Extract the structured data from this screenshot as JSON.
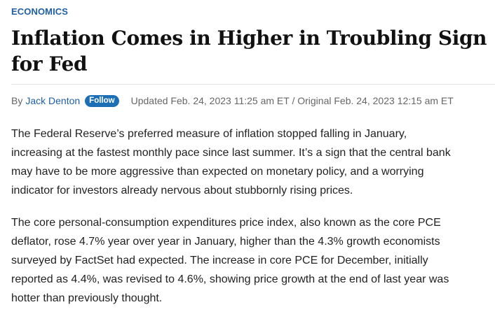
{
  "section": {
    "label": "ECONOMICS"
  },
  "headline": "Inflation Comes in Higher in Troubling Sign for Fed",
  "byline": {
    "prefix": "By",
    "author": "Jack Denton",
    "follow_label": "Follow",
    "timestamp": "Updated Feb. 24, 2023 11:25 am ET / Original Feb. 24, 2023 12:15 am ET"
  },
  "body": {
    "paragraphs": [
      "The Federal Reserve’s preferred measure of inflation stopped falling in January, increasing at the fastest monthly pace since last summer. It’s a sign that the central bank may have to be more aggressive than expected on monetary policy, and a worrying indicator for investors already nervous about stubbornly rising prices.",
      "The core personal-consumption expenditures price index, also known as the core PCE deflator, rose 4.7% year over year in January, higher than the 4.3% growth economists surveyed by FactSet had expected. The increase in core PCE for December, initially reported as 4.4%, was revised to 4.6%, showing price growth at the end of last year was hotter than previously thought."
    ]
  },
  "colors": {
    "accent": "#1f5fa8",
    "follow_button": "#1d6fb5",
    "headline": "#111111",
    "body_text": "#222222",
    "meta_text": "#666666"
  }
}
